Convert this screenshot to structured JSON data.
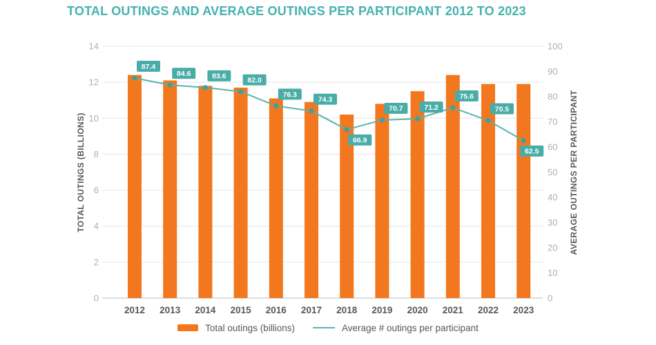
{
  "title": "TOTAL OUTINGS AND AVERAGE OUTINGS PER PARTICIPANT 2012 TO 2023",
  "colors": {
    "bar_orange": "#F2771E",
    "line_teal": "#58B3AD",
    "marker_teal": "#3FA09A",
    "badge_teal": "#4AACA7",
    "badge_text": "#FFFFFF",
    "title_teal": "#45B2AE",
    "grid": "#E5E6E7",
    "baseline": "#C8CBCC",
    "tick_text": "#A9AFB2",
    "year_text": "#54585B"
  },
  "chart_data": {
    "type": "bar",
    "title": "TOTAL OUTINGS AND AVERAGE OUTINGS PER PARTICIPANT 2012 TO 2023",
    "categories": [
      "2012",
      "2013",
      "2014",
      "2015",
      "2016",
      "2017",
      "2018",
      "2019",
      "2020",
      "2021",
      "2022",
      "2023"
    ],
    "series": [
      {
        "name": "Total outings (billions)",
        "type": "bar",
        "axis": "left",
        "values": [
          12.4,
          12.1,
          11.8,
          11.7,
          11.1,
          10.9,
          10.2,
          10.8,
          11.5,
          12.4,
          11.9,
          11.9
        ]
      },
      {
        "name": "Average # outings per participant",
        "type": "line",
        "axis": "right",
        "values": [
          87.4,
          84.6,
          83.6,
          82.0,
          76.3,
          74.3,
          66.9,
          70.7,
          71.2,
          75.6,
          70.5,
          62.5
        ],
        "data_labels_decimals": 1,
        "label_below_indices": [
          6,
          11
        ]
      }
    ],
    "left_axis": {
      "title": "TOTAL OUTINGS (BILLIONS)",
      "min": 0,
      "max": 14,
      "ticks": [
        0,
        2,
        4,
        6,
        8,
        10,
        12,
        14
      ]
    },
    "right_axis": {
      "title": "AVERAGE OUTINGS PER PARTICIPANT",
      "min": 0,
      "max": 100,
      "ticks": [
        0,
        10,
        20,
        30,
        40,
        50,
        60,
        70,
        80,
        90,
        100
      ]
    },
    "grid": true,
    "legend_position": "bottom"
  },
  "legend": {
    "bar_label": "Total outings (billions)",
    "line_label": "Average # outings per participant"
  }
}
